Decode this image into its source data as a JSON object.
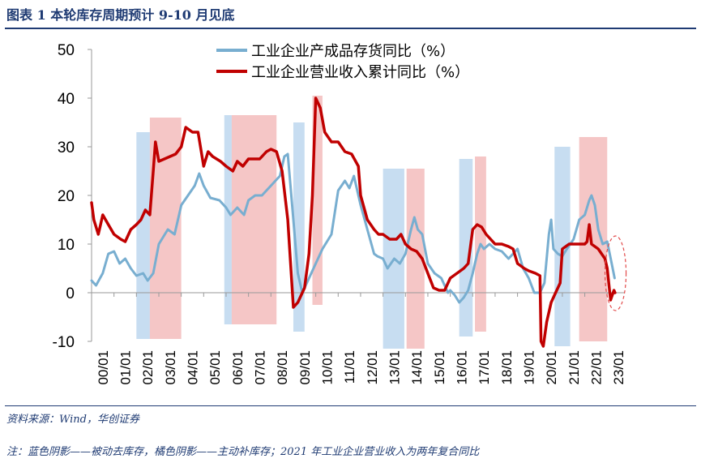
{
  "title": "图表 1   本轮库存周期预计 9-10 月见底",
  "source": "资料来源：Wind，华创证券",
  "note": "注：蓝色阴影——被动去库存，橘色阴影——主动补库存；2021 年工业企业营业收入为两年复合同比",
  "colors": {
    "series1": "#78aed0",
    "series2": "#c00000",
    "blue_shade": "#bdd7ee",
    "orange_shade": "#f2b8b8",
    "axis": "#999999",
    "circle": "#e24a4a"
  },
  "chart_data": {
    "type": "line",
    "ylim": [
      -10,
      50
    ],
    "yticks": [
      -10,
      0,
      10,
      20,
      30,
      40,
      50
    ],
    "xlim": [
      2000.0,
      2023.75
    ],
    "xticks": [
      "00/01",
      "01/01",
      "02/01",
      "03/01",
      "04/01",
      "05/01",
      "06/01",
      "07/01",
      "08/01",
      "09/01",
      "10/01",
      "11/01",
      "12/01",
      "13/01",
      "14/01",
      "15/01",
      "16/01",
      "17/01",
      "18/01",
      "19/01",
      "20/01",
      "21/01",
      "22/01",
      "23/01"
    ],
    "grid": false,
    "legend": "top",
    "series": [
      {
        "name": "工业企业产成品存货同比（%）",
        "points": [
          [
            2000.0,
            2.5
          ],
          [
            2000.2,
            1.5
          ],
          [
            2000.5,
            4
          ],
          [
            2000.75,
            8
          ],
          [
            2001.0,
            8.5
          ],
          [
            2001.25,
            6
          ],
          [
            2001.5,
            7
          ],
          [
            2001.75,
            5
          ],
          [
            2002.0,
            3.5
          ],
          [
            2002.3,
            4
          ],
          [
            2002.5,
            2.5
          ],
          [
            2002.75,
            4
          ],
          [
            2003.0,
            10
          ],
          [
            2003.4,
            13
          ],
          [
            2003.7,
            12
          ],
          [
            2004.0,
            18
          ],
          [
            2004.3,
            20
          ],
          [
            2004.6,
            22
          ],
          [
            2004.8,
            24.5
          ],
          [
            2005.0,
            22
          ],
          [
            2005.3,
            19.5
          ],
          [
            2005.7,
            19
          ],
          [
            2006.0,
            17.5
          ],
          [
            2006.2,
            16
          ],
          [
            2006.5,
            17.5
          ],
          [
            2006.8,
            16
          ],
          [
            2007.0,
            19
          ],
          [
            2007.3,
            20
          ],
          [
            2007.6,
            20
          ],
          [
            2008.0,
            22
          ],
          [
            2008.4,
            24
          ],
          [
            2008.6,
            28
          ],
          [
            2008.75,
            28.5
          ],
          [
            2009.0,
            15
          ],
          [
            2009.2,
            4
          ],
          [
            2009.4,
            0
          ],
          [
            2009.6,
            2
          ],
          [
            2009.8,
            4
          ],
          [
            2010.0,
            6
          ],
          [
            2010.3,
            9
          ],
          [
            2010.7,
            12
          ],
          [
            2011.0,
            21
          ],
          [
            2011.3,
            23
          ],
          [
            2011.5,
            21.5
          ],
          [
            2011.7,
            24
          ],
          [
            2012.0,
            18
          ],
          [
            2012.3,
            13
          ],
          [
            2012.6,
            8
          ],
          [
            2012.75,
            7.5
          ],
          [
            2013.0,
            7
          ],
          [
            2013.2,
            5
          ],
          [
            2013.5,
            7
          ],
          [
            2013.75,
            6
          ],
          [
            2014.0,
            8
          ],
          [
            2014.25,
            13
          ],
          [
            2014.4,
            15.5
          ],
          [
            2014.55,
            13
          ],
          [
            2014.75,
            12
          ],
          [
            2015.0,
            6
          ],
          [
            2015.3,
            4
          ],
          [
            2015.6,
            3
          ],
          [
            2015.9,
            0
          ],
          [
            2016.0,
            0.5
          ],
          [
            2016.2,
            -0.5
          ],
          [
            2016.4,
            -2
          ],
          [
            2016.6,
            -1
          ],
          [
            2016.8,
            0.5
          ],
          [
            2017.0,
            4
          ],
          [
            2017.2,
            8
          ],
          [
            2017.35,
            10
          ],
          [
            2017.5,
            9
          ],
          [
            2017.75,
            10
          ],
          [
            2018.0,
            9
          ],
          [
            2018.3,
            8.5
          ],
          [
            2018.6,
            7
          ],
          [
            2018.8,
            8
          ],
          [
            2019.0,
            9
          ],
          [
            2019.25,
            5
          ],
          [
            2019.5,
            3
          ],
          [
            2019.75,
            0
          ],
          [
            2020.0,
            0
          ],
          [
            2020.2,
            2
          ],
          [
            2020.4,
            12
          ],
          [
            2020.5,
            15
          ],
          [
            2020.6,
            9
          ],
          [
            2020.8,
            8
          ],
          [
            2021.0,
            7.5
          ],
          [
            2021.2,
            9
          ],
          [
            2021.5,
            11
          ],
          [
            2021.75,
            15
          ],
          [
            2022.0,
            16
          ],
          [
            2022.2,
            19
          ],
          [
            2022.3,
            20
          ],
          [
            2022.45,
            18
          ],
          [
            2022.6,
            13
          ],
          [
            2022.8,
            10
          ],
          [
            2023.0,
            10.5
          ],
          [
            2023.2,
            6
          ],
          [
            2023.33,
            3
          ]
        ]
      },
      {
        "name": "工业企业营业收入累计同比（%）",
        "points": [
          [
            2000.0,
            18.5
          ],
          [
            2000.1,
            15
          ],
          [
            2000.3,
            12
          ],
          [
            2000.4,
            14
          ],
          [
            2000.5,
            16
          ],
          [
            2000.75,
            14
          ],
          [
            2001.0,
            12
          ],
          [
            2001.3,
            11
          ],
          [
            2001.5,
            10.5
          ],
          [
            2001.75,
            13
          ],
          [
            2002.0,
            14
          ],
          [
            2002.2,
            15
          ],
          [
            2002.4,
            17
          ],
          [
            2002.6,
            16
          ],
          [
            2002.75,
            25
          ],
          [
            2002.85,
            31
          ],
          [
            2003.0,
            27
          ],
          [
            2003.5,
            28
          ],
          [
            2003.75,
            28.5
          ],
          [
            2004.0,
            30
          ],
          [
            2004.2,
            34
          ],
          [
            2004.5,
            33
          ],
          [
            2004.75,
            33
          ],
          [
            2005.0,
            26
          ],
          [
            2005.2,
            29
          ],
          [
            2005.4,
            28
          ],
          [
            2005.75,
            27
          ],
          [
            2006.0,
            26
          ],
          [
            2006.3,
            25
          ],
          [
            2006.5,
            27
          ],
          [
            2006.75,
            26
          ],
          [
            2007.0,
            27.5
          ],
          [
            2007.5,
            27.5
          ],
          [
            2007.8,
            29
          ],
          [
            2008.0,
            29.5
          ],
          [
            2008.25,
            29
          ],
          [
            2008.5,
            25
          ],
          [
            2008.75,
            15
          ],
          [
            2009.0,
            -3
          ],
          [
            2009.2,
            -2
          ],
          [
            2009.5,
            1
          ],
          [
            2009.7,
            8
          ],
          [
            2009.85,
            20
          ],
          [
            2010.0,
            40
          ],
          [
            2010.2,
            38
          ],
          [
            2010.4,
            33
          ],
          [
            2010.7,
            31
          ],
          [
            2011.0,
            31
          ],
          [
            2011.3,
            29
          ],
          [
            2011.6,
            28.5
          ],
          [
            2011.9,
            26
          ],
          [
            2012.0,
            20
          ],
          [
            2012.3,
            15
          ],
          [
            2012.6,
            13
          ],
          [
            2012.8,
            12
          ],
          [
            2013.0,
            12
          ],
          [
            2013.3,
            11
          ],
          [
            2013.6,
            11
          ],
          [
            2013.8,
            12
          ],
          [
            2014.0,
            10
          ],
          [
            2014.25,
            9
          ],
          [
            2014.5,
            8.5
          ],
          [
            2014.75,
            7
          ],
          [
            2015.0,
            4
          ],
          [
            2015.25,
            1
          ],
          [
            2015.5,
            0.5
          ],
          [
            2015.75,
            0.5
          ],
          [
            2016.0,
            3
          ],
          [
            2016.3,
            4
          ],
          [
            2016.6,
            5
          ],
          [
            2016.8,
            6
          ],
          [
            2017.0,
            13
          ],
          [
            2017.2,
            14
          ],
          [
            2017.4,
            13.5
          ],
          [
            2017.6,
            12
          ],
          [
            2017.8,
            11
          ],
          [
            2018.0,
            10
          ],
          [
            2018.3,
            10
          ],
          [
            2018.6,
            9.5
          ],
          [
            2018.8,
            9
          ],
          [
            2019.0,
            6
          ],
          [
            2019.3,
            5
          ],
          [
            2019.5,
            4.5
          ],
          [
            2019.8,
            4
          ],
          [
            2020.0,
            3.5
          ],
          [
            2020.05,
            -10
          ],
          [
            2020.15,
            -11
          ],
          [
            2020.3,
            -6
          ],
          [
            2020.5,
            -2
          ],
          [
            2020.7,
            0
          ],
          [
            2020.9,
            2
          ],
          [
            2021.0,
            9
          ],
          [
            2021.3,
            10
          ],
          [
            2021.5,
            10
          ],
          [
            2021.75,
            10
          ],
          [
            2021.9,
            10
          ],
          [
            2022.0,
            10
          ],
          [
            2022.1,
            10.5
          ],
          [
            2022.2,
            14
          ],
          [
            2022.3,
            10
          ],
          [
            2022.6,
            9
          ],
          [
            2022.9,
            7
          ],
          [
            2023.0,
            5
          ],
          [
            2023.15,
            -1.5
          ],
          [
            2023.3,
            0.5
          ],
          [
            2023.35,
            0
          ]
        ]
      }
    ],
    "shaded_regions": [
      {
        "type": "blue",
        "start": 2002.0,
        "end": 2002.6,
        "ymin": -9.5,
        "ymax": 33
      },
      {
        "type": "orange",
        "start": 2002.6,
        "end": 2004.0,
        "ymin": -9.5,
        "ymax": 36
      },
      {
        "type": "blue",
        "start": 2005.92,
        "end": 2006.25,
        "ymin": -6.5,
        "ymax": 36.5
      },
      {
        "type": "orange",
        "start": 2006.25,
        "end": 2008.25,
        "ymin": -6.5,
        "ymax": 36.5
      },
      {
        "type": "blue",
        "start": 2009.0,
        "end": 2009.5,
        "ymin": -8,
        "ymax": 35
      },
      {
        "type": "orange",
        "start": 2009.85,
        "end": 2010.3,
        "ymin": -2.5,
        "ymax": 40.5
      },
      {
        "type": "blue",
        "start": 2013.0,
        "end": 2013.95,
        "ymin": -11.5,
        "ymax": 25.5
      },
      {
        "type": "orange",
        "start": 2014.05,
        "end": 2014.85,
        "ymin": -11.5,
        "ymax": 25.5
      },
      {
        "type": "blue",
        "start": 2016.4,
        "end": 2017.0,
        "ymin": -9,
        "ymax": 27.5
      },
      {
        "type": "orange",
        "start": 2017.1,
        "end": 2017.6,
        "ymin": -8,
        "ymax": 28
      },
      {
        "type": "blue",
        "start": 2020.65,
        "end": 2021.35,
        "ymin": -11,
        "ymax": 30
      },
      {
        "type": "orange",
        "start": 2021.75,
        "end": 2023.0,
        "ymin": -10,
        "ymax": 32
      }
    ],
    "highlight_ellipse": {
      "x": 2023.3,
      "y": 4
    }
  }
}
